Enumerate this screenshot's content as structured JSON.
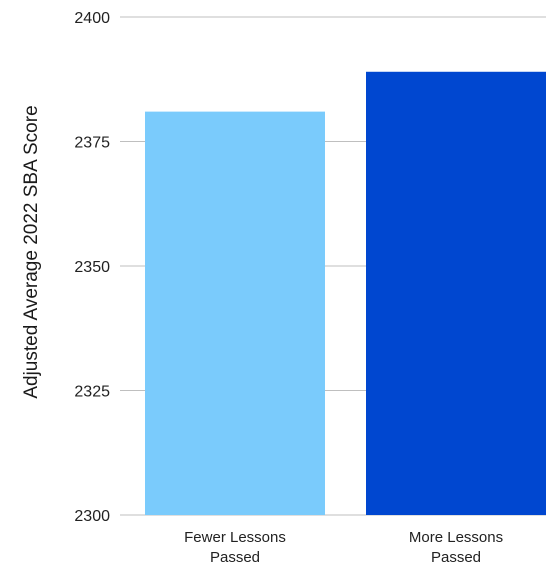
{
  "chart_data": {
    "type": "bar",
    "categories": [
      "Fewer Lessons Passed",
      "More Lessons Passed"
    ],
    "category_label_lines": [
      [
        "Fewer Lessons",
        "Passed"
      ],
      [
        "More Lessons",
        "Passed"
      ]
    ],
    "values": [
      2381,
      2389
    ],
    "ylabel": "Adjusted Average 2022 SBA Score",
    "xlabel": "",
    "ylim": [
      2300,
      2400
    ],
    "yticks": [
      2300,
      2325,
      2350,
      2375,
      2400
    ],
    "grid": true,
    "bar_colors": [
      "#7acbfc",
      "#0047d0"
    ]
  }
}
